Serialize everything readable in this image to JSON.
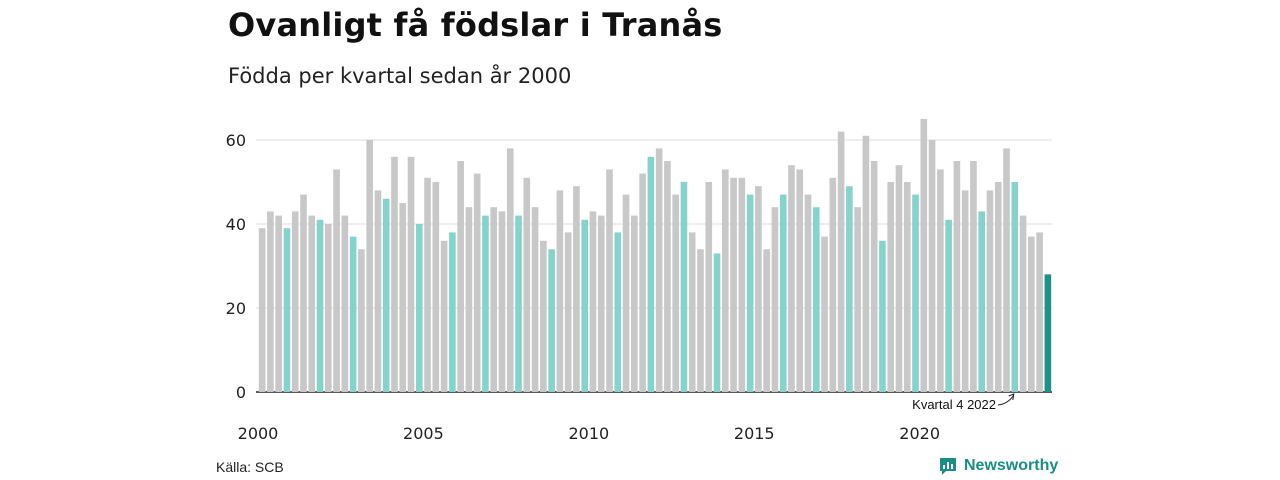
{
  "header": {
    "title": "Ovanligt få födslar i Tranås",
    "subtitle": "Födda per kvartal sedan år 2000"
  },
  "footer": {
    "source": "Källa: SCB",
    "brand": "Newsworthy",
    "brand_icon": "newsworthy-logo-icon"
  },
  "colors": {
    "default": "#c8c8c8",
    "highlight": "#86d3cc",
    "latest": "#1e9189",
    "grid": "#dddddd",
    "axis": "#222222"
  },
  "chart_data": {
    "type": "bar",
    "title": "Ovanligt få födslar i Tranås",
    "subtitle": "Födda per kvartal sedan år 2000",
    "xlabel": "",
    "ylabel": "",
    "ylim": [
      0,
      65
    ],
    "yticks": [
      0,
      20,
      40,
      60
    ],
    "xtick_labels": [
      "2000",
      "2005",
      "2010",
      "2015",
      "2020"
    ],
    "grid": true,
    "highlight_rule": "Kvartal 4 shown in teal; latest value dark teal",
    "annotation": {
      "text": "Kvartal 4 2022",
      "target_index": 91
    },
    "start_year": 2000,
    "values": [
      39,
      43,
      42,
      39,
      43,
      47,
      42,
      41,
      40,
      53,
      42,
      37,
      34,
      60,
      48,
      46,
      56,
      45,
      56,
      40,
      51,
      50,
      36,
      38,
      55,
      44,
      52,
      42,
      44,
      43,
      58,
      42,
      51,
      44,
      36,
      34,
      48,
      38,
      49,
      41,
      43,
      42,
      53,
      38,
      47,
      42,
      52,
      56,
      58,
      55,
      47,
      50,
      38,
      34,
      50,
      33,
      53,
      51,
      51,
      47,
      49,
      34,
      44,
      47,
      54,
      53,
      47,
      44,
      37,
      51,
      62,
      49,
      44,
      61,
      55,
      36,
      50,
      54,
      50,
      47,
      65,
      60,
      53,
      41,
      55,
      48,
      55,
      43,
      48,
      50,
      58,
      50,
      42,
      37,
      38,
      28
    ]
  }
}
